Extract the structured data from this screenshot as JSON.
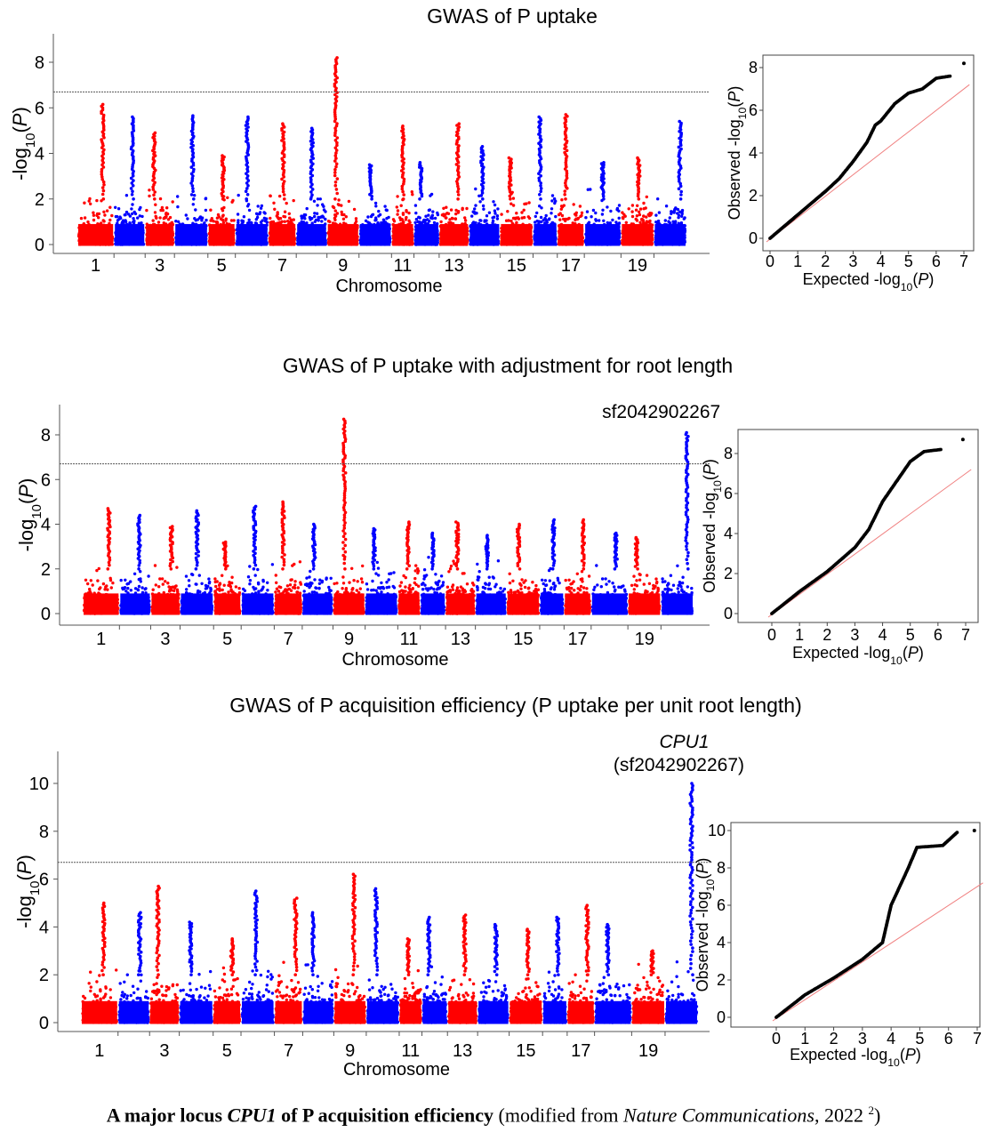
{
  "colors": {
    "odd_chromosome": "#ff0000",
    "even_chromosome": "#0000ff",
    "qq_points": "#000000",
    "qq_diagonal": "#f08080",
    "threshold": "#555555"
  },
  "chart_data": [
    {
      "type": "scatter",
      "subtype": "manhattan",
      "title": "GWAS of P uptake",
      "xlabel": "Chromosome",
      "ylabel_parts": [
        "-log",
        "10",
        "(",
        "P",
        ")"
      ],
      "x_tick_labels": [
        "1",
        "3",
        "5",
        "7",
        "9",
        "11",
        "13",
        "15",
        "17",
        "19"
      ],
      "y_ticks": [
        0,
        2,
        4,
        6,
        8
      ],
      "ylim": [
        0,
        9.3
      ],
      "threshold": 6.7,
      "chromosomes": 20,
      "peak_per_chromosome": [
        6.15,
        5.6,
        4.9,
        5.65,
        3.9,
        5.6,
        5.3,
        5.1,
        8.2,
        3.5,
        5.2,
        3.6,
        5.3,
        4.3,
        3.8,
        5.6,
        5.7,
        3.6,
        3.8,
        5.4
      ],
      "annotations": []
    },
    {
      "type": "scatter",
      "subtype": "qq",
      "xlabel_parts": [
        "Expected -log",
        "10",
        "(",
        "P",
        ")"
      ],
      "ylabel_parts": [
        "Observed -log",
        "10",
        "(",
        "P",
        ")"
      ],
      "x_ticks": [
        0,
        1,
        2,
        3,
        4,
        5,
        6,
        7
      ],
      "y_ticks": [
        0,
        2,
        4,
        6,
        8
      ],
      "points": [
        [
          0,
          0
        ],
        [
          1,
          1.1
        ],
        [
          2,
          2.2
        ],
        [
          2.5,
          2.8
        ],
        [
          3,
          3.6
        ],
        [
          3.5,
          4.5
        ],
        [
          3.8,
          5.3
        ],
        [
          4,
          5.5
        ],
        [
          4.5,
          6.3
        ],
        [
          5,
          6.8
        ],
        [
          5.5,
          7.0
        ],
        [
          6,
          7.5
        ],
        [
          6.5,
          7.6
        ],
        [
          7,
          8.2
        ]
      ],
      "diagonal": "y=x"
    },
    {
      "type": "scatter",
      "subtype": "manhattan",
      "title": "GWAS of P uptake with adjustment for root length",
      "xlabel": "Chromosome",
      "ylabel_parts": [
        "-log",
        "10",
        "(",
        "P",
        ")"
      ],
      "x_tick_labels": [
        "1",
        "3",
        "5",
        "7",
        "9",
        "11",
        "13",
        "15",
        "17",
        "19"
      ],
      "y_ticks": [
        0,
        2,
        4,
        6,
        8
      ],
      "ylim": [
        0,
        9.3
      ],
      "threshold": 6.7,
      "chromosomes": 20,
      "peak_per_chromosome": [
        4.7,
        4.4,
        3.9,
        4.6,
        3.2,
        4.8,
        5.0,
        4.0,
        8.7,
        3.8,
        4.1,
        3.6,
        4.1,
        3.5,
        4.0,
        4.2,
        4.2,
        3.6,
        3.4,
        8.1
      ],
      "annotations": [
        {
          "label": "sf2042902267",
          "chromosome": 20
        }
      ]
    },
    {
      "type": "scatter",
      "subtype": "qq",
      "xlabel_parts": [
        "Expected -log",
        "10",
        "(",
        "P",
        ")"
      ],
      "ylabel_parts": [
        "Observed -log",
        "10",
        "(",
        "P",
        ")"
      ],
      "x_ticks": [
        0,
        1,
        2,
        3,
        4,
        5,
        6,
        7
      ],
      "y_ticks": [
        0,
        2,
        4,
        6,
        8
      ],
      "points": [
        [
          0,
          0
        ],
        [
          1,
          1.1
        ],
        [
          2,
          2.1
        ],
        [
          3,
          3.3
        ],
        [
          3.5,
          4.2
        ],
        [
          4,
          5.6
        ],
        [
          4.5,
          6.6
        ],
        [
          5,
          7.6
        ],
        [
          5.5,
          8.1
        ],
        [
          6.1,
          8.2
        ],
        [
          6.9,
          8.7
        ]
      ],
      "diagonal": "y=x"
    },
    {
      "type": "scatter",
      "subtype": "manhattan",
      "title": "GWAS of P acquisition efficiency (P uptake per unit root length)",
      "xlabel": "Chromosome",
      "ylabel_parts": [
        "-log",
        "10",
        "(",
        "P",
        ")"
      ],
      "x_tick_labels": [
        "1",
        "3",
        "5",
        "7",
        "9",
        "11",
        "13",
        "15",
        "17",
        "19"
      ],
      "y_ticks": [
        0,
        2,
        4,
        6,
        8,
        10
      ],
      "ylim": [
        0,
        11.5
      ],
      "threshold": 6.7,
      "chromosomes": 20,
      "peak_per_chromosome": [
        5.0,
        4.6,
        5.7,
        4.2,
        3.5,
        5.5,
        5.2,
        4.6,
        6.2,
        5.6,
        3.5,
        4.4,
        4.5,
        4.1,
        3.9,
        4.4,
        4.9,
        4.1,
        3.0,
        10.0
      ],
      "annotations": [
        {
          "label": "CPU1",
          "label2": "(sf2042902267)",
          "chromosome": 20
        }
      ]
    },
    {
      "type": "scatter",
      "subtype": "qq",
      "xlabel_parts": [
        "Expected -log",
        "10",
        "(",
        "P",
        ")"
      ],
      "ylabel_parts": [
        "Observed -log",
        "10",
        "(",
        "P",
        ")"
      ],
      "x_ticks": [
        0,
        1,
        2,
        3,
        4,
        5,
        6,
        7
      ],
      "y_ticks": [
        0,
        2,
        4,
        6,
        8,
        10
      ],
      "points": [
        [
          0,
          0
        ],
        [
          1,
          1.2
        ],
        [
          2,
          2.1
        ],
        [
          3,
          3.1
        ],
        [
          3.7,
          4.0
        ],
        [
          4,
          6.0
        ],
        [
          4.3,
          7.0
        ],
        [
          4.6,
          8.0
        ],
        [
          4.9,
          9.1
        ],
        [
          5.8,
          9.2
        ],
        [
          6.3,
          9.9
        ],
        [
          6.9,
          10.0
        ]
      ],
      "diagonal": "y=x"
    }
  ],
  "caption": {
    "part1": "A major locus ",
    "part2": "CPU1",
    "part3": " of P acquisition efficiency",
    "part4": " (modified from ",
    "part5": "Nature Communications",
    "part6": ", 2022 ",
    "sup": "2",
    "part7": ")"
  }
}
